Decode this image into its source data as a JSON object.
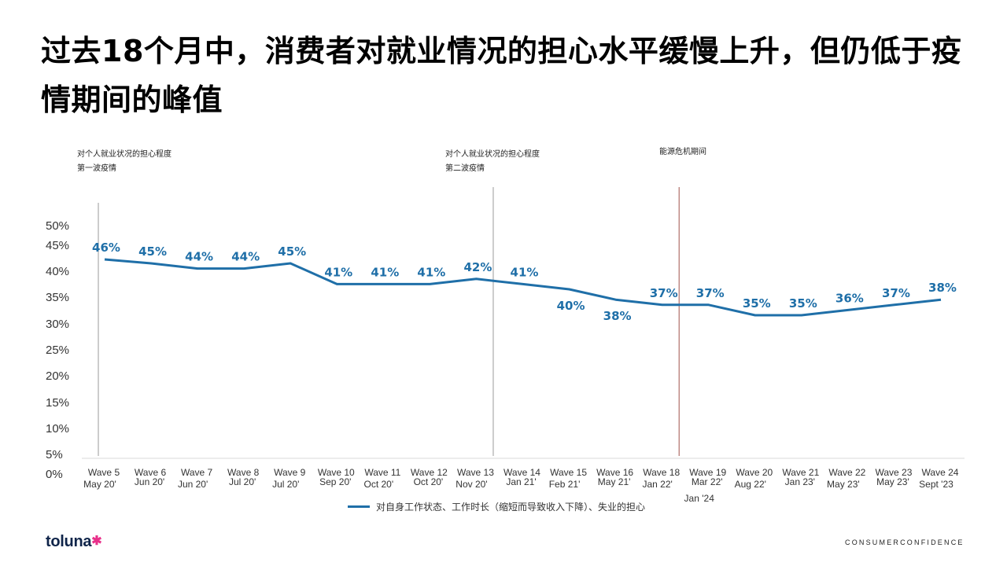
{
  "title": "过去18个月中，消费者对就业情况的担心水平缓慢上升，但仍低于疫情期间的峰值",
  "annotations": [
    {
      "lines": [
        "对个人就业状况的担心程度",
        "第一波疫情"
      ]
    },
    {
      "lines": [
        "对个人就业状况的担心程度",
        "第二波疫情"
      ]
    },
    {
      "lines": [
        "能源危机期间"
      ]
    }
  ],
  "legend_label": "对自身工作状态、工作时长（缩短而导致收入下降）、失业的担心",
  "logo": {
    "text": "toluna",
    "star": "✱"
  },
  "footer": "CONSUMERCONFIDENCE",
  "colors": {
    "series": "#1f6fa8",
    "vline_gray": "#9a9a9a",
    "vline_red": "#a0524a"
  },
  "chart_data": {
    "type": "line",
    "title": "",
    "y_ticks": [
      "0%",
      "5%",
      "10%",
      "15%",
      "20%",
      "25%",
      "30%",
      "35%",
      "40%",
      "45%",
      "50%"
    ],
    "ylim": [
      0,
      50
    ],
    "categories": [
      {
        "wave": "Wave 5",
        "date": "May 20'"
      },
      {
        "wave": "Wave 6",
        "date": "Jun 20'"
      },
      {
        "wave": "Wave 7",
        "date": "Jun 20'"
      },
      {
        "wave": "Wave 8",
        "date": "Jul 20'"
      },
      {
        "wave": "Wave 9",
        "date": "Jul 20'"
      },
      {
        "wave": "Wave 10",
        "date": "Sep 20'"
      },
      {
        "wave": "Wave 11",
        "date": "Oct 20'"
      },
      {
        "wave": "Wave 12",
        "date": "Oct 20'"
      },
      {
        "wave": "Wave 13",
        "date": "Nov 20'"
      },
      {
        "wave": "Wave 14",
        "date": "Jan 21'"
      },
      {
        "wave": "Wave 15",
        "date": "Feb 21'"
      },
      {
        "wave": "Wave 16",
        "date": "May 21'"
      },
      {
        "wave": "Wave 18",
        "date": "Jan 22'"
      },
      {
        "wave": "Wave 19",
        "date": "Mar 22'",
        "date2": "Jan '24"
      },
      {
        "wave": "Wave 20",
        "date": "Aug 22'"
      },
      {
        "wave": "Wave 21",
        "date": "Jan 23'"
      },
      {
        "wave": "Wave 22",
        "date": "May 23'"
      },
      {
        "wave": "Wave 23",
        "date": "May 23'"
      },
      {
        "wave": "Wave 24",
        "date": "Sept '23"
      }
    ],
    "series": [
      {
        "values": [
          46,
          45,
          44,
          44,
          45,
          41,
          41,
          41,
          42,
          41,
          40,
          38,
          37,
          37,
          35,
          35,
          36,
          37,
          38
        ],
        "labels": [
          "46%",
          "45%",
          "44%",
          "44%",
          "45%",
          "41%",
          "41%",
          "41%",
          "42%",
          "41%",
          "40%",
          "38%",
          "37%",
          "37%",
          "35%",
          "35%",
          "36%",
          "37%",
          "38%"
        ]
      }
    ],
    "grid": false,
    "legend_position": "bottom"
  }
}
